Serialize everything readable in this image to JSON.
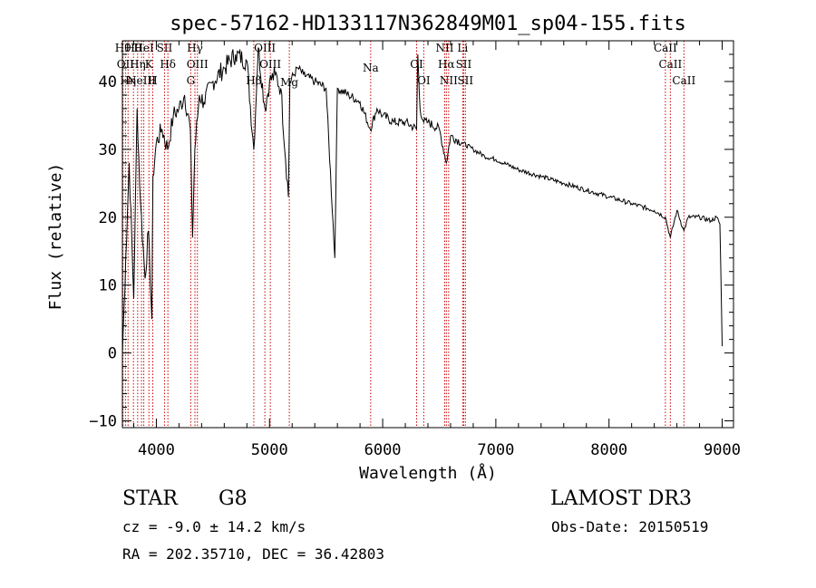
{
  "chart_data": {
    "type": "line",
    "title": "spec-57162-HD133117N362849M01_sp04-155.fits",
    "xlabel": "Wavelength (Å)",
    "ylabel": "Flux (relative)",
    "xlim": [
      3700,
      9100
    ],
    "ylim": [
      -11,
      46
    ],
    "xticks": [
      4000,
      5000,
      6000,
      7000,
      8000,
      9000
    ],
    "yticks": [
      -10,
      0,
      10,
      20,
      30,
      40
    ],
    "grid": false,
    "line_color": "#000000",
    "marker_color": "#cc0000",
    "series": [
      {
        "name": "flux",
        "x": [
          3700,
          3730,
          3760,
          3800,
          3830,
          3860,
          3900,
          3930,
          3960,
          3970,
          4000,
          4050,
          4100,
          4150,
          4200,
          4250,
          4300,
          4320,
          4340,
          4380,
          4420,
          4500,
          4600,
          4700,
          4800,
          4861,
          4900,
          4960,
          5000,
          5050,
          5100,
          5167,
          5180,
          5250,
          5300,
          5400,
          5500,
          5577,
          5600,
          5700,
          5800,
          5890,
          5950,
          6000,
          6100,
          6200,
          6300,
          6310,
          6330,
          6363,
          6400,
          6500,
          6563,
          6600,
          6700,
          6800,
          6900,
          7000,
          7200,
          7400,
          7600,
          7800,
          8000,
          8200,
          8400,
          8498,
          8542,
          8600,
          8662,
          8700,
          8800,
          8900,
          8950,
          8980,
          9000
        ],
        "y": [
          0,
          14,
          28,
          8,
          36,
          22,
          11,
          18,
          5,
          26,
          31,
          33,
          30,
          35,
          36,
          38,
          33,
          17,
          30,
          38,
          37,
          40,
          42,
          44,
          43,
          30,
          45,
          36,
          40,
          41,
          39,
          23,
          40,
          42,
          41,
          40,
          39,
          14,
          39,
          38,
          37,
          33,
          36,
          35,
          34,
          34,
          33,
          44,
          36,
          34,
          34,
          33,
          28,
          32,
          31,
          30,
          29,
          28.5,
          27,
          26,
          25,
          24,
          23,
          22,
          21,
          20,
          17,
          21,
          18,
          20,
          20,
          19.5,
          20,
          19,
          1
        ]
      }
    ],
    "lines": [
      {
        "wavelength": 3705,
        "label": "Hθ"
      },
      {
        "wavelength": 3727,
        "label": "OII"
      },
      {
        "wavelength": 3750,
        "label": "Hη"
      },
      {
        "wavelength": 3798,
        "label": "Hθ"
      },
      {
        "wavelength": 3835,
        "label": "Hη"
      },
      {
        "wavelength": 3869,
        "label": "NeIII"
      },
      {
        "wavelength": 3889,
        "label": "HeI"
      },
      {
        "wavelength": 3934,
        "label": "K"
      },
      {
        "wavelength": 3968,
        "label": "H"
      },
      {
        "wavelength": 4072,
        "label": "SII"
      },
      {
        "wavelength": 4102,
        "label": "Hδ"
      },
      {
        "wavelength": 4304,
        "label": "G"
      },
      {
        "wavelength": 4341,
        "label": "Hγ"
      },
      {
        "wavelength": 4363,
        "label": "OIII"
      },
      {
        "wavelength": 4861,
        "label": "Hβ"
      },
      {
        "wavelength": 4959,
        "label": "OIII"
      },
      {
        "wavelength": 5007,
        "label": "OIII"
      },
      {
        "wavelength": 5175,
        "label": "Mg"
      },
      {
        "wavelength": 5894,
        "label": "Na"
      },
      {
        "wavelength": 6300,
        "label": "OI"
      },
      {
        "wavelength": 6363,
        "label": "OI"
      },
      {
        "wavelength": 6548,
        "label": "NII"
      },
      {
        "wavelength": 6563,
        "label": "Hα"
      },
      {
        "wavelength": 6583,
        "label": "NII"
      },
      {
        "wavelength": 6707,
        "label": "Li"
      },
      {
        "wavelength": 6716,
        "label": "SII"
      },
      {
        "wavelength": 6731,
        "label": "SII"
      },
      {
        "wavelength": 8498,
        "label": "CaII"
      },
      {
        "wavelength": 8542,
        "label": "CaII"
      },
      {
        "wavelength": 8662,
        "label": "CaII"
      }
    ]
  },
  "info": {
    "object_class": "STAR",
    "subclass": "G8",
    "survey": "LAMOST DR3",
    "cz": "cz = -9.0 ± 14.2 km/s",
    "obs_date": "Obs-Date: 20150519",
    "coords": "RA = 202.35710, DEC =  36.42803"
  }
}
